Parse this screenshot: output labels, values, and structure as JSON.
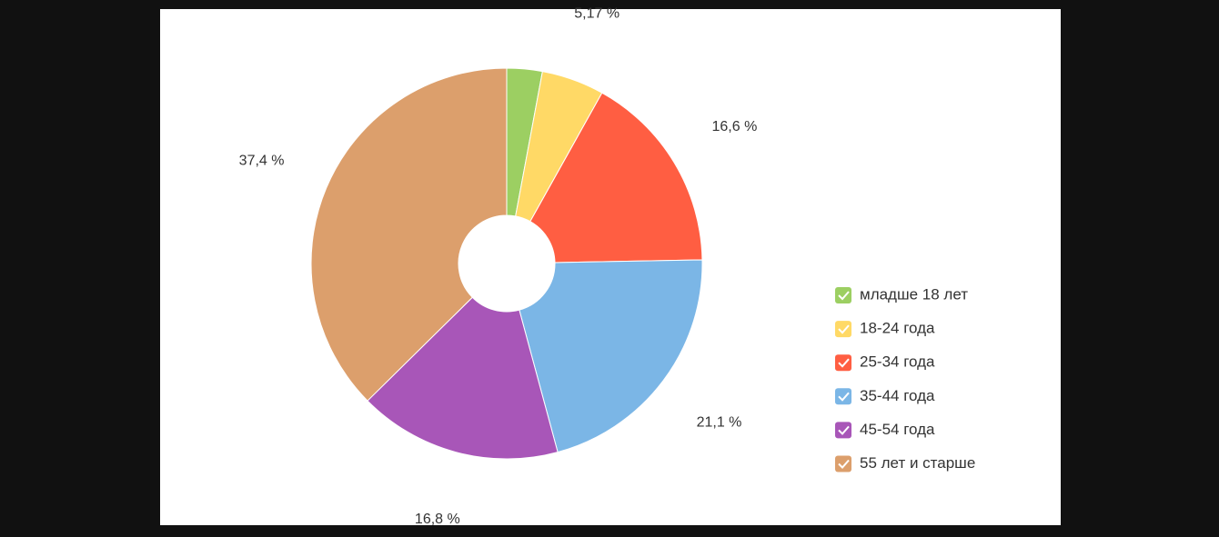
{
  "chart_data": {
    "type": "donut",
    "categories": [
      "младше 18 лет",
      "18-24 года",
      "25-34 года",
      "35-44 года",
      "45-54 года",
      "55 лет и старше"
    ],
    "values": [
      2.93,
      5.17,
      16.6,
      21.1,
      16.8,
      37.4
    ],
    "value_labels": [
      null,
      "5,17 %",
      "16,6 %",
      "21,1 %",
      "16,8 %",
      "37,4 %"
    ],
    "colors": [
      "#9ccf62",
      "#ffd966",
      "#ff5e42",
      "#7bb6e6",
      "#a856b8",
      "#dc9f6c"
    ],
    "legend": "right"
  }
}
